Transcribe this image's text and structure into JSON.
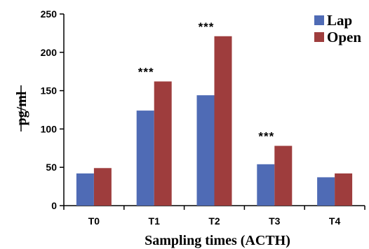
{
  "chart_data": {
    "type": "bar",
    "categories": [
      "T0",
      "T1",
      "T2",
      "T3",
      "T4"
    ],
    "series": [
      {
        "name": "Lap",
        "values": [
          42,
          124,
          144,
          54,
          37
        ],
        "color": "#4F6BB5"
      },
      {
        "name": "Open",
        "values": [
          49,
          162,
          221,
          78,
          42
        ],
        "color": "#9E3D3D"
      }
    ],
    "annotations": [
      "",
      "***",
      "***",
      "***",
      ""
    ],
    "xlabel": "Sampling times (ACTH)",
    "ylabel": "pg/ml",
    "ylim": [
      0,
      250
    ],
    "yticks": [
      0,
      50,
      100,
      150,
      200,
      250
    ],
    "legend_position": "top-right",
    "grid": false
  }
}
